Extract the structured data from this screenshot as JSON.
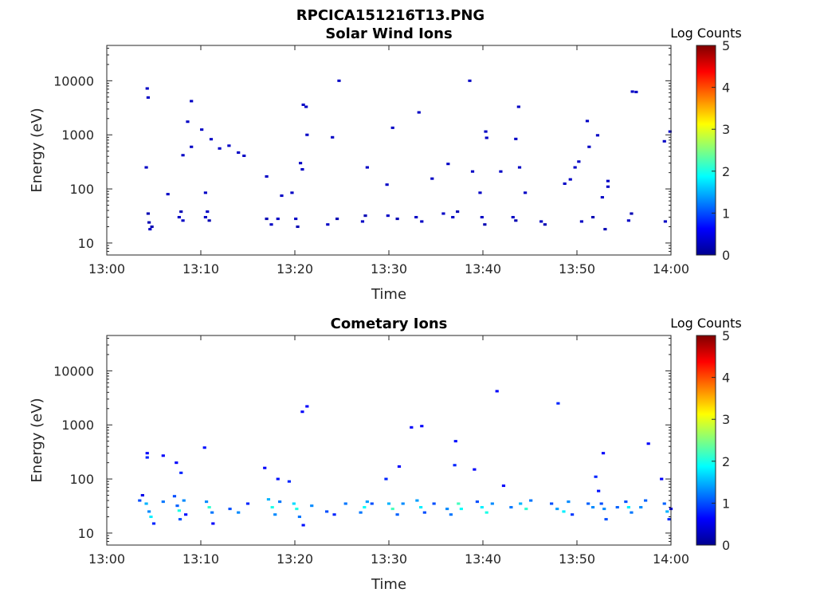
{
  "figure_title": "RPCICA151216T13.PNG",
  "colormap": [
    "#00008f",
    "#0000ff",
    "#0080ff",
    "#00ffff",
    "#80ff80",
    "#ffff00",
    "#ff8000",
    "#ff0000",
    "#800000"
  ],
  "chart_data": [
    {
      "type": "heatmap",
      "title": "Solar Wind Ions",
      "xlabel": "Time",
      "ylabel": "Energy (eV)",
      "yscale": "log",
      "xlim": [
        "13:00",
        "14:00"
      ],
      "ylim": [
        6,
        45000
      ],
      "xticks": [
        "13:00",
        "13:10",
        "13:20",
        "13:30",
        "13:40",
        "13:50",
        "14:00"
      ],
      "yticks": [
        {
          "value": 10,
          "label": "10"
        },
        {
          "value": 100,
          "label": "100"
        },
        {
          "value": 1000,
          "label": "1000"
        },
        {
          "value": 10000,
          "label": "10000"
        }
      ],
      "colorbar": {
        "label": "Log Counts",
        "range": [
          0,
          5
        ],
        "ticks": [
          "0",
          "1",
          "2",
          "3",
          "4",
          "5"
        ]
      },
      "cells": [
        {
          "t": 4.3,
          "e": 7200,
          "c": 0.3
        },
        {
          "t": 4.4,
          "e": 4900,
          "c": 0.3
        },
        {
          "t": 4.2,
          "e": 250,
          "c": 0.3
        },
        {
          "t": 4.4,
          "e": 35,
          "c": 0.2
        },
        {
          "t": 4.5,
          "e": 24,
          "c": 0.2
        },
        {
          "t": 4.8,
          "e": 20,
          "c": 0.2
        },
        {
          "t": 4.6,
          "e": 18,
          "c": 0.3
        },
        {
          "t": 6.5,
          "e": 80,
          "c": 0.3
        },
        {
          "t": 7.7,
          "e": 30,
          "c": 0.3
        },
        {
          "t": 7.9,
          "e": 38,
          "c": 0.2
        },
        {
          "t": 8.1,
          "e": 26,
          "c": 0.3
        },
        {
          "t": 8.1,
          "e": 420,
          "c": 0.3
        },
        {
          "t": 8.6,
          "e": 1750,
          "c": 0.3
        },
        {
          "t": 9.0,
          "e": 4200,
          "c": 0.3
        },
        {
          "t": 9.0,
          "e": 600,
          "c": 0.3
        },
        {
          "t": 10.1,
          "e": 1250,
          "c": 0.3
        },
        {
          "t": 10.5,
          "e": 85,
          "c": 0.3
        },
        {
          "t": 10.5,
          "e": 30,
          "c": 0.3
        },
        {
          "t": 10.7,
          "e": 38,
          "c": 0.3
        },
        {
          "t": 10.9,
          "e": 26,
          "c": 0.2
        },
        {
          "t": 11.1,
          "e": 830,
          "c": 0.3
        },
        {
          "t": 12.0,
          "e": 560,
          "c": 0.3
        },
        {
          "t": 13.0,
          "e": 630,
          "c": 0.3
        },
        {
          "t": 14.0,
          "e": 470,
          "c": 0.3
        },
        {
          "t": 14.6,
          "e": 410,
          "c": 0.3
        },
        {
          "t": 17.0,
          "e": 170,
          "c": 0.3
        },
        {
          "t": 17.0,
          "e": 28,
          "c": 0.2
        },
        {
          "t": 17.5,
          "e": 22,
          "c": 0.3
        },
        {
          "t": 18.2,
          "e": 28,
          "c": 0.3
        },
        {
          "t": 18.6,
          "e": 75,
          "c": 0.3
        },
        {
          "t": 19.7,
          "e": 85,
          "c": 0.3
        },
        {
          "t": 20.1,
          "e": 28,
          "c": 0.3
        },
        {
          "t": 20.3,
          "e": 20,
          "c": 0.2
        },
        {
          "t": 20.6,
          "e": 300,
          "c": 0.3
        },
        {
          "t": 20.8,
          "e": 230,
          "c": 0.3
        },
        {
          "t": 20.9,
          "e": 3600,
          "c": 0.3
        },
        {
          "t": 21.2,
          "e": 3300,
          "c": 0.3
        },
        {
          "t": 21.3,
          "e": 1000,
          "c": 0.3
        },
        {
          "t": 23.5,
          "e": 22,
          "c": 0.3
        },
        {
          "t": 24.0,
          "e": 900,
          "c": 0.3
        },
        {
          "t": 24.5,
          "e": 28,
          "c": 0.2
        },
        {
          "t": 24.7,
          "e": 10000,
          "c": 0.3
        },
        {
          "t": 27.2,
          "e": 25,
          "c": 0.3
        },
        {
          "t": 27.5,
          "e": 32,
          "c": 0.2
        },
        {
          "t": 27.7,
          "e": 250,
          "c": 0.3
        },
        {
          "t": 29.8,
          "e": 120,
          "c": 0.3
        },
        {
          "t": 29.9,
          "e": 32,
          "c": 0.3
        },
        {
          "t": 30.4,
          "e": 1350,
          "c": 0.3
        },
        {
          "t": 30.9,
          "e": 28,
          "c": 0.2
        },
        {
          "t": 32.9,
          "e": 30,
          "c": 0.3
        },
        {
          "t": 33.2,
          "e": 2600,
          "c": 0.3
        },
        {
          "t": 33.5,
          "e": 25,
          "c": 0.3
        },
        {
          "t": 34.6,
          "e": 155,
          "c": 0.3
        },
        {
          "t": 35.8,
          "e": 35,
          "c": 0.3
        },
        {
          "t": 36.3,
          "e": 290,
          "c": 0.3
        },
        {
          "t": 36.8,
          "e": 30,
          "c": 0.3
        },
        {
          "t": 37.3,
          "e": 38,
          "c": 0.2
        },
        {
          "t": 38.6,
          "e": 10000,
          "c": 0.3
        },
        {
          "t": 38.9,
          "e": 210,
          "c": 0.3
        },
        {
          "t": 39.7,
          "e": 85,
          "c": 0.3
        },
        {
          "t": 39.9,
          "e": 30,
          "c": 0.3
        },
        {
          "t": 40.2,
          "e": 22,
          "c": 0.2
        },
        {
          "t": 40.3,
          "e": 1150,
          "c": 0.3
        },
        {
          "t": 40.4,
          "e": 880,
          "c": 0.3
        },
        {
          "t": 41.9,
          "e": 210,
          "c": 0.3
        },
        {
          "t": 43.2,
          "e": 30,
          "c": 0.3
        },
        {
          "t": 43.5,
          "e": 26,
          "c": 0.2
        },
        {
          "t": 43.5,
          "e": 840,
          "c": 0.3
        },
        {
          "t": 43.8,
          "e": 3300,
          "c": 0.3
        },
        {
          "t": 43.9,
          "e": 250,
          "c": 0.3
        },
        {
          "t": 44.5,
          "e": 85,
          "c": 0.3
        },
        {
          "t": 46.2,
          "e": 25,
          "c": 0.3
        },
        {
          "t": 46.6,
          "e": 22,
          "c": 0.2
        },
        {
          "t": 48.7,
          "e": 125,
          "c": 0.3
        },
        {
          "t": 49.3,
          "e": 150,
          "c": 0.3
        },
        {
          "t": 49.8,
          "e": 250,
          "c": 0.3
        },
        {
          "t": 50.2,
          "e": 320,
          "c": 0.3
        },
        {
          "t": 50.5,
          "e": 25,
          "c": 0.3
        },
        {
          "t": 51.1,
          "e": 1800,
          "c": 0.3
        },
        {
          "t": 51.3,
          "e": 600,
          "c": 0.3
        },
        {
          "t": 51.7,
          "e": 30,
          "c": 0.2
        },
        {
          "t": 52.2,
          "e": 980,
          "c": 0.3
        },
        {
          "t": 52.7,
          "e": 70,
          "c": 0.3
        },
        {
          "t": 53.0,
          "e": 18,
          "c": 0.2
        },
        {
          "t": 53.3,
          "e": 110,
          "c": 0.3
        },
        {
          "t": 53.3,
          "e": 140,
          "c": 0.3
        },
        {
          "t": 55.5,
          "e": 26,
          "c": 0.3
        },
        {
          "t": 55.8,
          "e": 35,
          "c": 0.2
        },
        {
          "t": 55.9,
          "e": 6300,
          "c": 0.3
        },
        {
          "t": 56.3,
          "e": 6200,
          "c": 0.3
        },
        {
          "t": 59.3,
          "e": 760,
          "c": 0.3
        },
        {
          "t": 59.4,
          "e": 25,
          "c": 0.3
        },
        {
          "t": 59.9,
          "e": 1150,
          "c": 0.3
        }
      ]
    },
    {
      "type": "heatmap",
      "title": "Cometary Ions",
      "xlabel": "Time",
      "ylabel": "Energy (eV)",
      "yscale": "log",
      "xlim": [
        "13:00",
        "14:00"
      ],
      "ylim": [
        6,
        45000
      ],
      "xticks": [
        "13:00",
        "13:10",
        "13:20",
        "13:30",
        "13:40",
        "13:50",
        "14:00"
      ],
      "yticks": [
        {
          "value": 10,
          "label": "10"
        },
        {
          "value": 100,
          "label": "100"
        },
        {
          "value": 1000,
          "label": "1000"
        },
        {
          "value": 10000,
          "label": "10000"
        }
      ],
      "colorbar": {
        "label": "Log Counts",
        "range": [
          0,
          5
        ],
        "ticks": [
          "0",
          "1",
          "2",
          "3",
          "4",
          "5"
        ]
      },
      "cells": [
        {
          "t": 3.5,
          "e": 40,
          "c": 1.0
        },
        {
          "t": 3.8,
          "e": 50,
          "c": 0.5
        },
        {
          "t": 4.2,
          "e": 35,
          "c": 1.5
        },
        {
          "t": 4.5,
          "e": 25,
          "c": 1.3
        },
        {
          "t": 4.3,
          "e": 300,
          "c": 0.6
        },
        {
          "t": 4.3,
          "e": 250,
          "c": 0.8
        },
        {
          "t": 4.7,
          "e": 20,
          "c": 1.8
        },
        {
          "t": 5.0,
          "e": 15,
          "c": 0.8
        },
        {
          "t": 6.0,
          "e": 38,
          "c": 1.2
        },
        {
          "t": 6.0,
          "e": 270,
          "c": 0.6
        },
        {
          "t": 7.2,
          "e": 48,
          "c": 1.0
        },
        {
          "t": 7.4,
          "e": 200,
          "c": 0.6
        },
        {
          "t": 7.5,
          "e": 32,
          "c": 1.1
        },
        {
          "t": 7.7,
          "e": 26,
          "c": 2.0
        },
        {
          "t": 7.8,
          "e": 18,
          "c": 1.0
        },
        {
          "t": 7.9,
          "e": 130,
          "c": 0.8
        },
        {
          "t": 8.2,
          "e": 40,
          "c": 1.3
        },
        {
          "t": 8.4,
          "e": 22,
          "c": 0.7
        },
        {
          "t": 10.4,
          "e": 380,
          "c": 0.7
        },
        {
          "t": 10.6,
          "e": 38,
          "c": 1.3
        },
        {
          "t": 10.9,
          "e": 30,
          "c": 2.1
        },
        {
          "t": 11.2,
          "e": 24,
          "c": 1.2
        },
        {
          "t": 11.3,
          "e": 15,
          "c": 0.6
        },
        {
          "t": 13.1,
          "e": 28,
          "c": 1.0
        },
        {
          "t": 14.0,
          "e": 24,
          "c": 1.3
        },
        {
          "t": 15.0,
          "e": 35,
          "c": 0.8
        },
        {
          "t": 16.8,
          "e": 160,
          "c": 0.6
        },
        {
          "t": 17.2,
          "e": 42,
          "c": 1.5
        },
        {
          "t": 17.6,
          "e": 30,
          "c": 2.0
        },
        {
          "t": 17.9,
          "e": 22,
          "c": 1.3
        },
        {
          "t": 18.2,
          "e": 100,
          "c": 0.7
        },
        {
          "t": 18.4,
          "e": 38,
          "c": 1.2
        },
        {
          "t": 19.4,
          "e": 90,
          "c": 0.8
        },
        {
          "t": 19.9,
          "e": 35,
          "c": 1.7
        },
        {
          "t": 20.2,
          "e": 28,
          "c": 2.0
        },
        {
          "t": 20.5,
          "e": 20,
          "c": 1.2
        },
        {
          "t": 20.9,
          "e": 14,
          "c": 0.7
        },
        {
          "t": 20.8,
          "e": 1750,
          "c": 0.6
        },
        {
          "t": 21.3,
          "e": 2200,
          "c": 0.6
        },
        {
          "t": 21.8,
          "e": 32,
          "c": 1.3
        },
        {
          "t": 23.4,
          "e": 25,
          "c": 1.0
        },
        {
          "t": 24.2,
          "e": 22,
          "c": 0.8
        },
        {
          "t": 25.4,
          "e": 35,
          "c": 1.2
        },
        {
          "t": 27.0,
          "e": 24,
          "c": 1.2
        },
        {
          "t": 27.4,
          "e": 30,
          "c": 1.9
        },
        {
          "t": 27.7,
          "e": 38,
          "c": 1.4
        },
        {
          "t": 28.2,
          "e": 35,
          "c": 1.0
        },
        {
          "t": 29.7,
          "e": 100,
          "c": 0.8
        },
        {
          "t": 30.0,
          "e": 35,
          "c": 1.5
        },
        {
          "t": 30.4,
          "e": 28,
          "c": 2.2
        },
        {
          "t": 30.9,
          "e": 22,
          "c": 1.1
        },
        {
          "t": 31.1,
          "e": 170,
          "c": 0.6
        },
        {
          "t": 31.5,
          "e": 35,
          "c": 1.3
        },
        {
          "t": 32.4,
          "e": 900,
          "c": 0.6
        },
        {
          "t": 33.0,
          "e": 40,
          "c": 1.4
        },
        {
          "t": 33.4,
          "e": 30,
          "c": 1.8
        },
        {
          "t": 33.5,
          "e": 950,
          "c": 0.6
        },
        {
          "t": 33.8,
          "e": 24,
          "c": 1.0
        },
        {
          "t": 34.8,
          "e": 35,
          "c": 1.0
        },
        {
          "t": 36.2,
          "e": 28,
          "c": 1.3
        },
        {
          "t": 36.6,
          "e": 22,
          "c": 1.2
        },
        {
          "t": 37.0,
          "e": 180,
          "c": 0.8
        },
        {
          "t": 37.1,
          "e": 500,
          "c": 0.7
        },
        {
          "t": 37.4,
          "e": 35,
          "c": 2.2
        },
        {
          "t": 37.7,
          "e": 28,
          "c": 1.9
        },
        {
          "t": 39.1,
          "e": 150,
          "c": 0.6
        },
        {
          "t": 39.4,
          "e": 38,
          "c": 1.0
        },
        {
          "t": 39.9,
          "e": 30,
          "c": 1.8
        },
        {
          "t": 40.4,
          "e": 24,
          "c": 2.0
        },
        {
          "t": 41.0,
          "e": 35,
          "c": 1.3
        },
        {
          "t": 41.5,
          "e": 4200,
          "c": 0.6
        },
        {
          "t": 42.2,
          "e": 75,
          "c": 0.6
        },
        {
          "t": 43.0,
          "e": 30,
          "c": 1.2
        },
        {
          "t": 44.0,
          "e": 35,
          "c": 1.5
        },
        {
          "t": 44.6,
          "e": 28,
          "c": 2.1
        },
        {
          "t": 45.1,
          "e": 40,
          "c": 1.2
        },
        {
          "t": 47.3,
          "e": 35,
          "c": 1.0
        },
        {
          "t": 47.9,
          "e": 28,
          "c": 1.4
        },
        {
          "t": 48.0,
          "e": 2500,
          "c": 0.8
        },
        {
          "t": 48.6,
          "e": 25,
          "c": 1.8
        },
        {
          "t": 49.1,
          "e": 38,
          "c": 1.3
        },
        {
          "t": 49.5,
          "e": 22,
          "c": 0.9
        },
        {
          "t": 51.2,
          "e": 35,
          "c": 1.1
        },
        {
          "t": 51.7,
          "e": 30,
          "c": 1.3
        },
        {
          "t": 52.0,
          "e": 110,
          "c": 0.8
        },
        {
          "t": 52.3,
          "e": 60,
          "c": 0.7
        },
        {
          "t": 52.6,
          "e": 35,
          "c": 1.0
        },
        {
          "t": 52.8,
          "e": 300,
          "c": 0.6
        },
        {
          "t": 52.9,
          "e": 28,
          "c": 1.3
        },
        {
          "t": 53.1,
          "e": 18,
          "c": 1.0
        },
        {
          "t": 54.3,
          "e": 30,
          "c": 1.1
        },
        {
          "t": 55.2,
          "e": 38,
          "c": 1.0
        },
        {
          "t": 55.5,
          "e": 30,
          "c": 1.8
        },
        {
          "t": 55.8,
          "e": 24,
          "c": 1.2
        },
        {
          "t": 56.8,
          "e": 30,
          "c": 1.3
        },
        {
          "t": 57.3,
          "e": 40,
          "c": 1.1
        },
        {
          "t": 57.6,
          "e": 450,
          "c": 0.6
        },
        {
          "t": 59.0,
          "e": 100,
          "c": 0.6
        },
        {
          "t": 59.3,
          "e": 35,
          "c": 1.1
        },
        {
          "t": 59.6,
          "e": 25,
          "c": 1.5
        },
        {
          "t": 59.8,
          "e": 18,
          "c": 0.8
        },
        {
          "t": 60.0,
          "e": 28,
          "c": 0.6
        }
      ]
    }
  ]
}
